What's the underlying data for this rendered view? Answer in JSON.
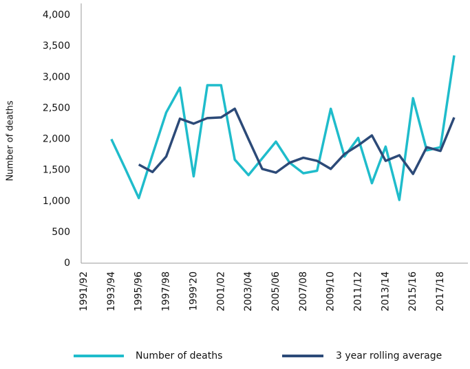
{
  "chart_data": {
    "type": "line",
    "y_label": "Number of deaths",
    "categories": [
      "1991/92",
      null,
      "1993/94",
      null,
      "1995/96",
      null,
      "1997/98",
      null,
      "1999'20",
      null,
      "2001/02",
      null,
      "2003/04",
      null,
      "2005/06",
      null,
      "2007/08",
      null,
      "2009/10",
      null,
      "2011/12",
      null,
      "2013/14",
      null,
      "2015/16",
      null,
      "2017/18",
      null
    ],
    "series": [
      {
        "name": "Number of deaths",
        "color": "#1fbccb",
        "values": [
          null,
          null,
          2000,
          1530,
          1050,
          1750,
          2430,
          2830,
          1400,
          2870,
          2870,
          1670,
          1420,
          1690,
          1960,
          1620,
          1450,
          1490,
          2490,
          1720,
          2020,
          1290,
          1880,
          1020,
          2660,
          1820,
          1870,
          3350
        ]
      },
      {
        "name": "3 year rolling average",
        "color": "#2c4a78",
        "values": [
          null,
          null,
          null,
          null,
          1590,
          1470,
          1720,
          2330,
          2250,
          2340,
          2350,
          2490,
          2000,
          1520,
          1460,
          1620,
          1700,
          1650,
          1520,
          1760,
          1900,
          2060,
          1650,
          1740,
          1440,
          1870,
          1810,
          2350
        ]
      }
    ],
    "ylim": [
      0,
      4000
    ],
    "yticks": [
      0,
      {
        "value": 500,
        "label": "500"
      },
      {
        "value": 1000,
        "label": "1,000"
      },
      {
        "value": 1500,
        "label": "1,500"
      },
      {
        "value": 2000,
        "label": "2,000"
      },
      {
        "value": 2500,
        "label": "2,500"
      },
      {
        "value": 3000,
        "label": "3,000"
      },
      {
        "value": 3500,
        "label": "3,500"
      },
      {
        "value": 4000,
        "label": "4,000"
      }
    ],
    "grid": false
  }
}
